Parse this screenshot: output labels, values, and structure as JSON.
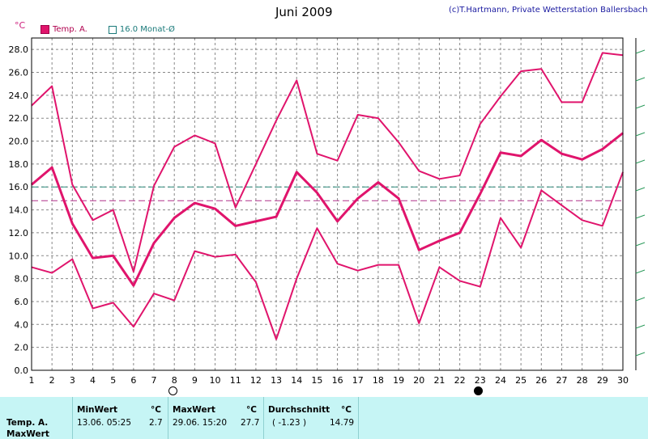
{
  "header": {
    "title": "Juni 2009",
    "credit": "(c)T.Hartmann, Private Wetterstation Ballersbach",
    "unit": "°C"
  },
  "legend": {
    "temp_label": "Temp. A.",
    "avg_label": "16.0 Monat-Ø"
  },
  "colors": {
    "temp": "#e0146c",
    "monthly_avg_line": "#2a8a7a",
    "long_term_avg_line": "#b0308a",
    "grid": "#888888",
    "panel": "#c6f5f5"
  },
  "chart_data": {
    "type": "line",
    "title": "Juni 2009",
    "ylabel": "°C",
    "ylim": [
      0,
      29
    ],
    "yticks": [
      "0.0",
      "2.0",
      "4.0",
      "6.0",
      "8.0",
      "10.0",
      "12.0",
      "14.0",
      "16.0",
      "18.0",
      "20.0",
      "22.0",
      "24.0",
      "26.0",
      "28.0"
    ],
    "x": [
      1,
      2,
      3,
      4,
      5,
      6,
      7,
      8,
      9,
      10,
      11,
      12,
      13,
      14,
      15,
      16,
      17,
      18,
      19,
      20,
      21,
      22,
      23,
      24,
      25,
      26,
      27,
      28,
      29,
      30
    ],
    "series": [
      {
        "role": "max",
        "values": [
          23.1,
          24.8,
          16.2,
          13.1,
          14.0,
          8.6,
          16.1,
          19.5,
          20.5,
          19.8,
          14.2,
          18.0,
          21.8,
          25.3,
          18.9,
          18.3,
          22.3,
          22.0,
          19.9,
          17.4,
          16.7,
          17.0,
          21.5,
          23.9,
          26.1,
          26.3,
          23.4,
          23.4,
          27.7,
          27.5
        ]
      },
      {
        "role": "mean",
        "values": [
          16.2,
          17.7,
          12.8,
          9.8,
          10.0,
          7.4,
          11.1,
          13.3,
          14.6,
          14.1,
          12.6,
          13.0,
          13.4,
          17.3,
          15.5,
          13.0,
          15.0,
          16.4,
          15.0,
          10.5,
          11.3,
          12.0,
          15.4,
          19.0,
          18.7,
          20.1,
          18.9,
          18.4,
          19.3,
          20.7
        ]
      },
      {
        "role": "min",
        "values": [
          9.0,
          8.5,
          9.7,
          5.4,
          5.9,
          3.8,
          6.7,
          6.1,
          10.4,
          9.9,
          10.1,
          7.7,
          2.7,
          8.0,
          12.4,
          9.3,
          8.7,
          9.2,
          9.2,
          4.1,
          9.0,
          7.8,
          7.3,
          13.3,
          10.7,
          15.7,
          14.4,
          13.1,
          12.6,
          17.3
        ]
      }
    ],
    "monthly_avg": 16.0,
    "long_term_avg": 14.8,
    "moon_phases": [
      {
        "day": 7.9,
        "phase": "full"
      },
      {
        "day": 22.9,
        "phase": "new"
      }
    ]
  },
  "stats": {
    "row_label_1": "Temp. A.",
    "row_label_2": "MaxWert",
    "min_header": "MinWert",
    "max_header": "MaxWert",
    "avg_header": "Durchschnitt",
    "unit": "°C",
    "min_date": "13.06.  05:25",
    "min_value": "2.7",
    "max_date": "29.06.  15:20",
    "max_value": "27.7",
    "deviation": "( -1.23 )",
    "avg_value": "14.79"
  }
}
